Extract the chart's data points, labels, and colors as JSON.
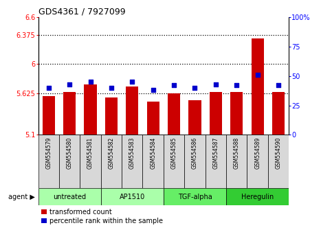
{
  "title": "GDS4361 / 7927099",
  "categories": [
    "GSM554579",
    "GSM554580",
    "GSM554581",
    "GSM554582",
    "GSM554583",
    "GSM554584",
    "GSM554585",
    "GSM554586",
    "GSM554587",
    "GSM554588",
    "GSM554589",
    "GSM554590"
  ],
  "bar_values": [
    5.59,
    5.65,
    5.74,
    5.58,
    5.72,
    5.52,
    5.63,
    5.54,
    5.65,
    5.65,
    6.33,
    5.65
  ],
  "dot_values_pct": [
    40,
    43,
    45,
    40,
    45,
    38,
    42,
    40,
    43,
    42,
    51,
    42
  ],
  "bar_color": "#cc0000",
  "dot_color": "#0000cc",
  "ylim_left": [
    5.1,
    6.6
  ],
  "ylim_right": [
    0,
    100
  ],
  "yticks_left": [
    5.1,
    5.625,
    6.0,
    6.375,
    6.6
  ],
  "ytick_labels_left": [
    "5.1",
    "5.625",
    "6",
    "6.375",
    "6.6"
  ],
  "yticks_right": [
    0,
    25,
    50,
    75,
    100
  ],
  "ytick_labels_right": [
    "0",
    "25",
    "50",
    "75",
    "100%"
  ],
  "hlines": [
    5.625,
    6.0,
    6.375
  ],
  "groups": [
    {
      "label": "untreated",
      "start": 0,
      "end": 2,
      "color": "#aaffaa"
    },
    {
      "label": "AP1510",
      "start": 3,
      "end": 5,
      "color": "#aaffaa"
    },
    {
      "label": "TGF-alpha",
      "start": 6,
      "end": 8,
      "color": "#66ee66"
    },
    {
      "label": "Heregulin",
      "start": 9,
      "end": 11,
      "color": "#33cc33"
    }
  ],
  "legend_bar_label": "transformed count",
  "legend_dot_label": "percentile rank within the sample",
  "agent_label": "agent",
  "sample_box_color": "#d8d8d8",
  "background_color": "#ffffff",
  "fig_width": 4.83,
  "fig_height": 3.54,
  "dpi": 100
}
